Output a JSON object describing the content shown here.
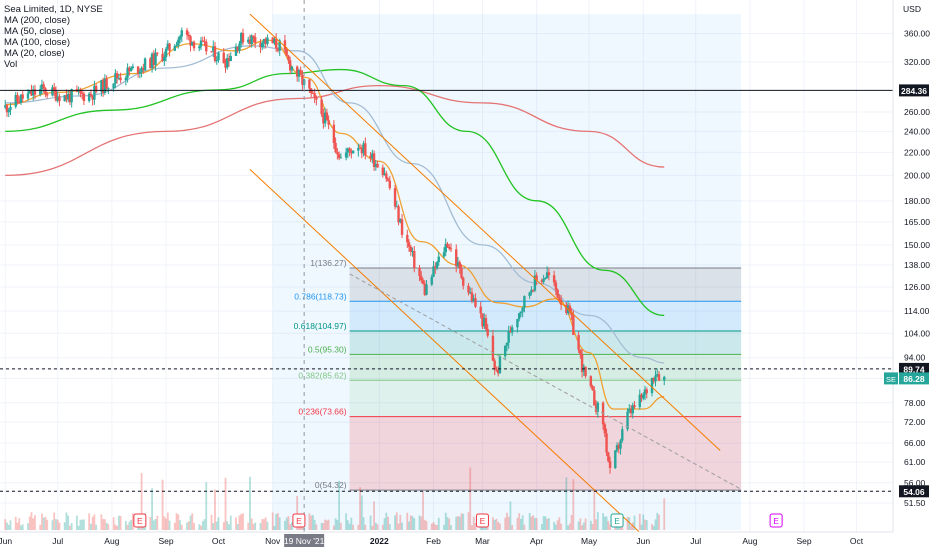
{
  "chart_data": {
    "type": "candlestick",
    "symbol_title": "Sea Limited, 1D, NYSE",
    "ticker": "SE",
    "currency_label": "USD",
    "indicators": [
      {
        "label": "MA (200, close)",
        "color": "#e57373"
      },
      {
        "label": "MA (50, close)",
        "color": "#a4bdd4"
      },
      {
        "label": "MA (100, close)",
        "color": "#22c322"
      },
      {
        "label": "MA (20, close)",
        "color": "#f0a030"
      },
      {
        "label": "Vol",
        "color": "#131722"
      }
    ],
    "y_axis": {
      "scale": "log",
      "range": [
        48,
        400
      ],
      "ticks": [
        360.0,
        320.0,
        284.36,
        260.0,
        240.0,
        220.0,
        200.0,
        180.0,
        165.0,
        150.0,
        138.0,
        126.0,
        114.0,
        104.0,
        94.0,
        89.74,
        86.28,
        78.0,
        72.0,
        66.0,
        61.0,
        56.0,
        54.06,
        51.5
      ],
      "tick_labels": [
        "360.00",
        "320.00",
        "284.36",
        "260.00",
        "240.00",
        "220.00",
        "200.00",
        "180.00",
        "165.00",
        "150.00",
        "138.00",
        "126.00",
        "114.00",
        "104.00",
        "94.00",
        "89.74",
        "86.28",
        "78.00",
        "72.00",
        "66.00",
        "61.00",
        "56.00",
        "54.06",
        "51.50"
      ]
    },
    "x_axis": {
      "type": "time",
      "ticks": [
        "2021-06-01",
        "2021-07-01",
        "2021-08-01",
        "2021-09-01",
        "2021-10-01",
        "2021-11-01",
        "2021-11-19",
        "2022-01-01",
        "2022-02-01",
        "2022-03-01",
        "2022-04-01",
        "2022-05-01",
        "2022-06-01",
        "2022-07-01",
        "2022-08-01",
        "2022-09-01",
        "2022-10-01"
      ],
      "tick_labels": [
        "Jun",
        "Jul",
        "Aug",
        "Sep",
        "Oct",
        "Nov",
        "19 Nov '21",
        "2022",
        "Feb",
        "Mar",
        "Apr",
        "May",
        "Jun",
        "Jul",
        "Aug",
        "Sep",
        "Oct"
      ],
      "cursor_label": "19 Nov '21",
      "cursor_date": "2021-11-19"
    },
    "price_labels": {
      "horizontal_line": {
        "value": 284.36,
        "label": "284.36"
      },
      "dashed_line": {
        "value": 89.74,
        "label": "89.74"
      },
      "last_price": {
        "value": 86.28,
        "label": "86.28"
      },
      "support": {
        "value": 54.06,
        "label": "54.06"
      }
    },
    "fibonacci": [
      {
        "label": "1(136.27)",
        "value": 136.27,
        "color": "#787b86",
        "fill": "rgba(120,123,134,0.18)"
      },
      {
        "label": "0.786(118.73)",
        "value": 118.73,
        "color": "#2196f3",
        "fill": "rgba(33,150,243,0.14)"
      },
      {
        "label": "0.618(104.97)",
        "value": 104.97,
        "color": "#009688",
        "fill": "rgba(0,150,136,0.15)"
      },
      {
        "label": "0.5(95.30)",
        "value": 95.3,
        "color": "#4caf50",
        "fill": "rgba(76,175,80,0.15)"
      },
      {
        "label": "0.382(85.62)",
        "value": 85.62,
        "color": "#81c784",
        "fill": "rgba(129,199,132,0.14)"
      },
      {
        "label": "0.236(73.66)",
        "value": 73.66,
        "color": "#f23645",
        "fill": "rgba(242,54,69,0.18)"
      },
      {
        "label": "0(54.32)",
        "value": 54.32,
        "color": "#787b86",
        "fill": "none"
      }
    ],
    "event_markers": [
      {
        "date": "2021-08-17",
        "label": "E",
        "kind": "earnings-past"
      },
      {
        "date": "2021-11-16",
        "label": "E",
        "kind": "earnings-past"
      },
      {
        "date": "2022-03-01",
        "label": "E",
        "kind": "earnings-past"
      },
      {
        "date": "2022-05-17",
        "label": "E",
        "kind": "earnings-recent"
      },
      {
        "date": "2022-08-16",
        "label": "E",
        "kind": "earnings-upcoming"
      }
    ],
    "channels": [
      {
        "name": "upper",
        "points": [
          [
            "2021-10-19",
            390
          ],
          [
            "2022-07-15",
            64
          ]
        ],
        "color": "#f57c00"
      },
      {
        "name": "lower",
        "points": [
          [
            "2021-10-19",
            205
          ],
          [
            "2022-06-01",
            45
          ]
        ],
        "color": "#f57c00"
      },
      {
        "name": "middle",
        "points": [
          [
            "2021-12-15",
            133
          ],
          [
            "2022-07-27",
            54.5
          ]
        ],
        "color": "#9e9e9e",
        "dash": true
      }
    ],
    "ohlc_anchors": [
      [
        "2021-06-01",
        265
      ],
      [
        "2021-06-10",
        275
      ],
      [
        "2021-06-22",
        285
      ],
      [
        "2021-07-06",
        277
      ],
      [
        "2021-07-20",
        280
      ],
      [
        "2021-08-03",
        300
      ],
      [
        "2021-08-18",
        314
      ],
      [
        "2021-09-01",
        333
      ],
      [
        "2021-09-10",
        360
      ],
      [
        "2021-09-22",
        340
      ],
      [
        "2021-10-05",
        322
      ],
      [
        "2021-10-15",
        355
      ],
      [
        "2021-10-28",
        348
      ],
      [
        "2021-11-05",
        342
      ],
      [
        "2021-11-10",
        320
      ],
      [
        "2021-11-19",
        292
      ],
      [
        "2021-12-01",
        252
      ],
      [
        "2021-12-10",
        215
      ],
      [
        "2021-12-20",
        228
      ],
      [
        "2022-01-04",
        204
      ],
      [
        "2022-01-14",
        160
      ],
      [
        "2022-01-27",
        124
      ],
      [
        "2022-02-09",
        152
      ],
      [
        "2022-02-18",
        130
      ],
      [
        "2022-03-02",
        108
      ],
      [
        "2022-03-09",
        88
      ],
      [
        "2022-03-18",
        108
      ],
      [
        "2022-03-30",
        128
      ],
      [
        "2022-04-07",
        133
      ],
      [
        "2022-04-20",
        112
      ],
      [
        "2022-04-29",
        86
      ],
      [
        "2022-05-09",
        72
      ],
      [
        "2022-05-13",
        58
      ],
      [
        "2022-05-23",
        74
      ],
      [
        "2022-06-01",
        80
      ],
      [
        "2022-06-08",
        89
      ],
      [
        "2022-06-13",
        86.28
      ]
    ],
    "moving_averages": [
      {
        "name": "MA (200, close)",
        "color": "#e57373",
        "points": [
          [
            "2021-06-01",
            200
          ],
          [
            "2021-09-01",
            240
          ],
          [
            "2021-11-15",
            275
          ],
          [
            "2022-01-01",
            290
          ],
          [
            "2022-03-01",
            270
          ],
          [
            "2022-05-01",
            240
          ],
          [
            "2022-06-13",
            207
          ]
        ]
      },
      {
        "name": "MA (100, close)",
        "color": "#22c322",
        "points": [
          [
            "2021-06-01",
            240
          ],
          [
            "2021-08-01",
            262
          ],
          [
            "2021-10-01",
            285
          ],
          [
            "2021-11-10",
            305
          ],
          [
            "2021-12-10",
            310
          ],
          [
            "2022-01-15",
            290
          ],
          [
            "2022-02-20",
            240
          ],
          [
            "2022-04-01",
            180
          ],
          [
            "2022-05-10",
            135
          ],
          [
            "2022-06-13",
            112
          ]
        ]
      },
      {
        "name": "MA (50, close)",
        "color": "#a4bdd4",
        "points": [
          [
            "2021-06-01",
            270
          ],
          [
            "2021-07-15",
            278
          ],
          [
            "2021-09-01",
            312
          ],
          [
            "2021-10-20",
            342
          ],
          [
            "2021-11-15",
            335
          ],
          [
            "2021-12-15",
            270
          ],
          [
            "2022-01-20",
            210
          ],
          [
            "2022-03-01",
            150
          ],
          [
            "2022-04-01",
            128
          ],
          [
            "2022-05-01",
            112
          ],
          [
            "2022-06-01",
            94
          ],
          [
            "2022-06-13",
            92
          ]
        ]
      },
      {
        "name": "MA (20, close)",
        "color": "#f0a030",
        "points": [
          [
            "2021-06-01",
            268
          ],
          [
            "2021-07-01",
            282
          ],
          [
            "2021-08-15",
            305
          ],
          [
            "2021-09-15",
            345
          ],
          [
            "2021-10-10",
            335
          ],
          [
            "2021-10-30",
            350
          ],
          [
            "2021-11-20",
            300
          ],
          [
            "2021-12-10",
            238
          ],
          [
            "2022-01-01",
            212
          ],
          [
            "2022-01-25",
            152
          ],
          [
            "2022-02-15",
            138
          ],
          [
            "2022-03-10",
            118
          ],
          [
            "2022-03-25",
            116
          ],
          [
            "2022-04-12",
            120
          ],
          [
            "2022-05-01",
            96
          ],
          [
            "2022-05-15",
            76
          ],
          [
            "2022-06-01",
            76
          ],
          [
            "2022-06-13",
            80
          ]
        ]
      }
    ]
  }
}
